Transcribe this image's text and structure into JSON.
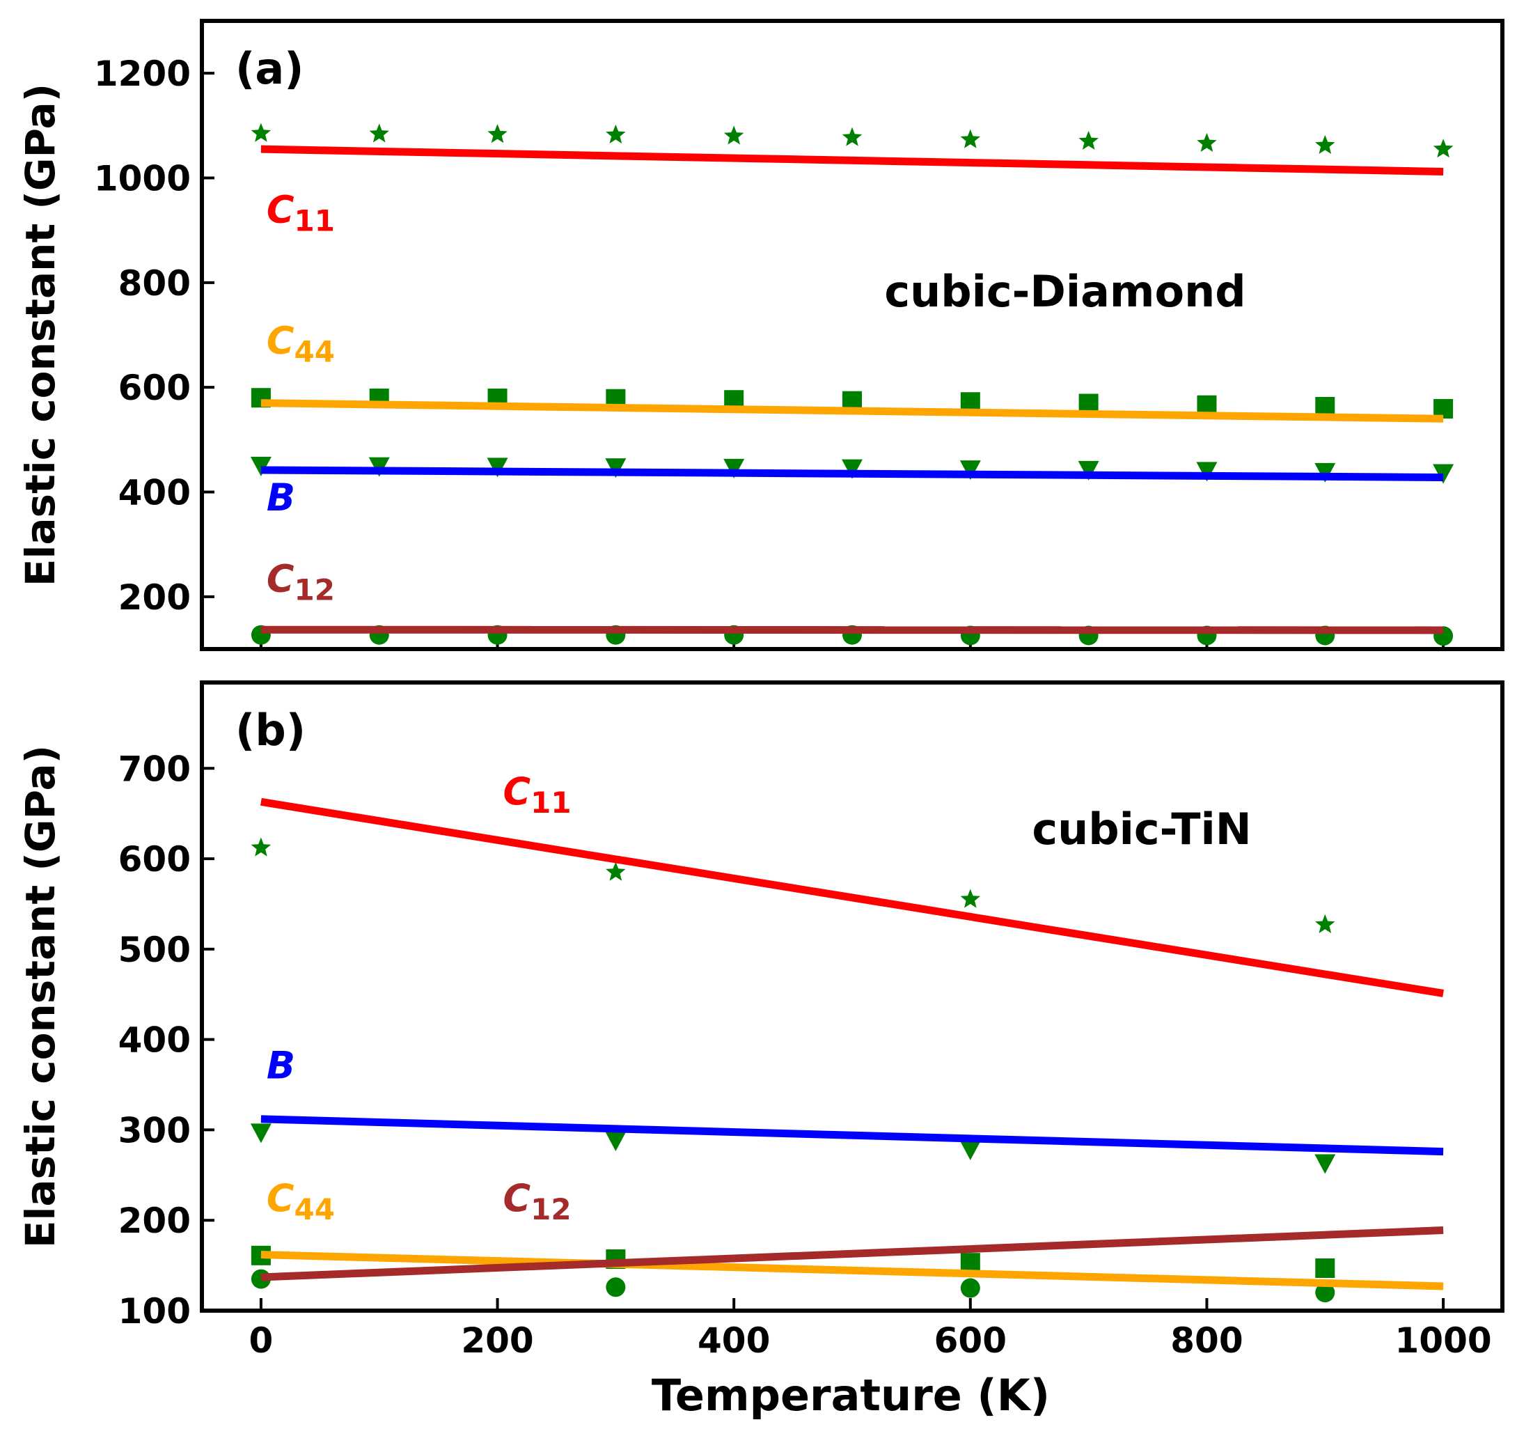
{
  "colors": {
    "C11": "#ff0000",
    "C44": "#ffa500",
    "B": "#0000ff",
    "C12": "#a52a2a",
    "markers": "#008000",
    "axes": "#000000"
  },
  "chart_data": [
    {
      "panel_label": "(a)",
      "type": "scatter",
      "title": "cubic-Diamond",
      "xlabel": "",
      "ylabel": "Elastic constant (GPa)",
      "xlim": [
        -50,
        1050
      ],
      "ylim": [
        100,
        1300
      ],
      "yticks": [
        200,
        400,
        600,
        800,
        1000,
        1200
      ],
      "xticks": [
        0,
        200,
        400,
        600,
        800,
        1000
      ],
      "xtick_labels_shown": false,
      "grid": false,
      "labels": [
        {
          "key": "C11",
          "main": "C",
          "sub": "11",
          "x": 0,
          "y": 915
        },
        {
          "key": "C44",
          "main": "C",
          "sub": "44",
          "x": 0,
          "y": 665
        },
        {
          "key": "B",
          "main": "B",
          "sub": "",
          "x": 0,
          "y": 365
        },
        {
          "key": "C12",
          "main": "C",
          "sub": "12",
          "x": 0,
          "y": 210
        }
      ],
      "series": [
        {
          "key": "C11",
          "marker": "star",
          "x": [
            0,
            100,
            200,
            300,
            400,
            500,
            600,
            700,
            800,
            900,
            1000
          ],
          "points": [
            1085,
            1084,
            1083,
            1082,
            1080,
            1077,
            1073,
            1070,
            1066,
            1062,
            1055
          ],
          "fit_x": [
            0,
            1000
          ],
          "fit_y": [
            1055,
            1012
          ]
        },
        {
          "key": "C44",
          "marker": "square",
          "x": [
            0,
            100,
            200,
            300,
            400,
            500,
            600,
            700,
            800,
            900,
            1000
          ],
          "points": [
            580,
            579,
            579,
            578,
            576,
            574,
            572,
            569,
            566,
            563,
            559
          ],
          "fit_x": [
            0,
            1000
          ],
          "fit_y": [
            570,
            540
          ]
        },
        {
          "key": "B",
          "marker": "triangle_down",
          "x": [
            0,
            100,
            200,
            300,
            400,
            500,
            600,
            700,
            800,
            900,
            1000
          ],
          "points": [
            450,
            449,
            448,
            447,
            446,
            445,
            443,
            442,
            440,
            438,
            436
          ],
          "fit_x": [
            0,
            1000
          ],
          "fit_y": [
            442,
            428
          ]
        },
        {
          "key": "C12",
          "marker": "circle",
          "x": [
            0,
            100,
            200,
            300,
            400,
            500,
            600,
            700,
            800,
            900,
            1000
          ],
          "points": [
            127,
            127,
            127,
            127,
            127,
            127,
            126,
            126,
            126,
            126,
            125
          ],
          "fit_x": [
            0,
            1000
          ],
          "fit_y": [
            137,
            136
          ]
        }
      ]
    },
    {
      "panel_label": "(b)",
      "type": "scatter",
      "title": "cubic-TiN",
      "xlabel": "Temperature (K)",
      "ylabel": "Elastic constant (GPa)",
      "xlim": [
        -50,
        1050
      ],
      "ylim": [
        100,
        795
      ],
      "yticks": [
        100,
        200,
        300,
        400,
        500,
        600,
        700
      ],
      "xticks": [
        0,
        200,
        400,
        600,
        800,
        1000
      ],
      "xtick_labels_shown": true,
      "grid": false,
      "labels": [
        {
          "key": "C11",
          "main": "C",
          "sub": "11",
          "x": 200,
          "y": 660
        },
        {
          "key": "B",
          "main": "B",
          "sub": "",
          "x": 0,
          "y": 357
        },
        {
          "key": "C44",
          "main": "C",
          "sub": "44",
          "x": 0,
          "y": 210
        },
        {
          "key": "C12",
          "main": "C",
          "sub": "12",
          "x": 200,
          "y": 210
        }
      ],
      "series": [
        {
          "key": "C11",
          "marker": "star",
          "x": [
            0,
            300,
            600,
            900
          ],
          "points": [
            612,
            585,
            555,
            527
          ],
          "fit_x": [
            0,
            1000
          ],
          "fit_y": [
            663,
            451
          ]
        },
        {
          "key": "B",
          "marker": "triangle_down",
          "x": [
            0,
            300,
            600,
            900
          ],
          "points": [
            297,
            288,
            278,
            263
          ],
          "fit_x": [
            0,
            1000
          ],
          "fit_y": [
            312,
            276
          ]
        },
        {
          "key": "C44",
          "marker": "square",
          "x": [
            0,
            300,
            600,
            900
          ],
          "points": [
            161,
            157,
            153,
            147
          ],
          "fit_x": [
            0,
            1000
          ],
          "fit_y": [
            162,
            127
          ]
        },
        {
          "key": "C12",
          "marker": "circle",
          "x": [
            0,
            300,
            600,
            900
          ],
          "points": [
            135,
            126,
            125,
            120
          ],
          "fit_x": [
            0,
            1000
          ],
          "fit_y": [
            137,
            189
          ]
        }
      ]
    }
  ]
}
